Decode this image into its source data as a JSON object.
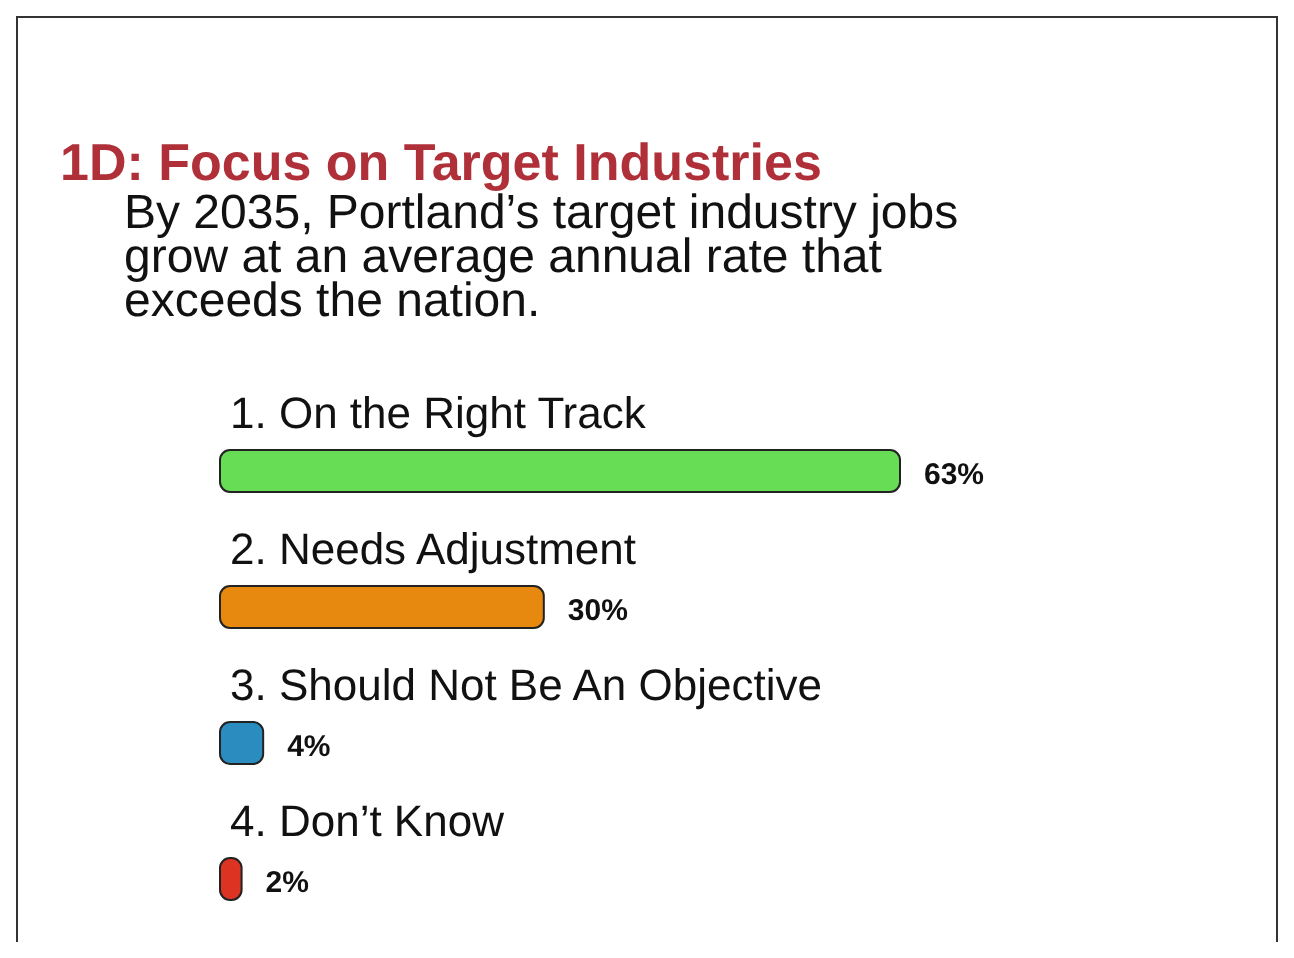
{
  "chart_data": {
    "type": "bar",
    "orientation": "horizontal",
    "title": "1D: Focus on Target Industries",
    "subtitle": "By 2035, Portland’s target industry jobs grow at an average annual rate that exceeds the nation.",
    "categories": [
      "1.  On the Right Track",
      "2.  Needs Adjustment",
      "3.  Should Not Be An Objective",
      "4.  Don’t Know"
    ],
    "values": [
      63,
      30,
      4,
      2
    ],
    "colors": [
      "#66dd55",
      "#e8890f",
      "#2b8cc0",
      "#dd3322"
    ],
    "value_labels": [
      "63%",
      "30%",
      "4%",
      "2%"
    ]
  }
}
